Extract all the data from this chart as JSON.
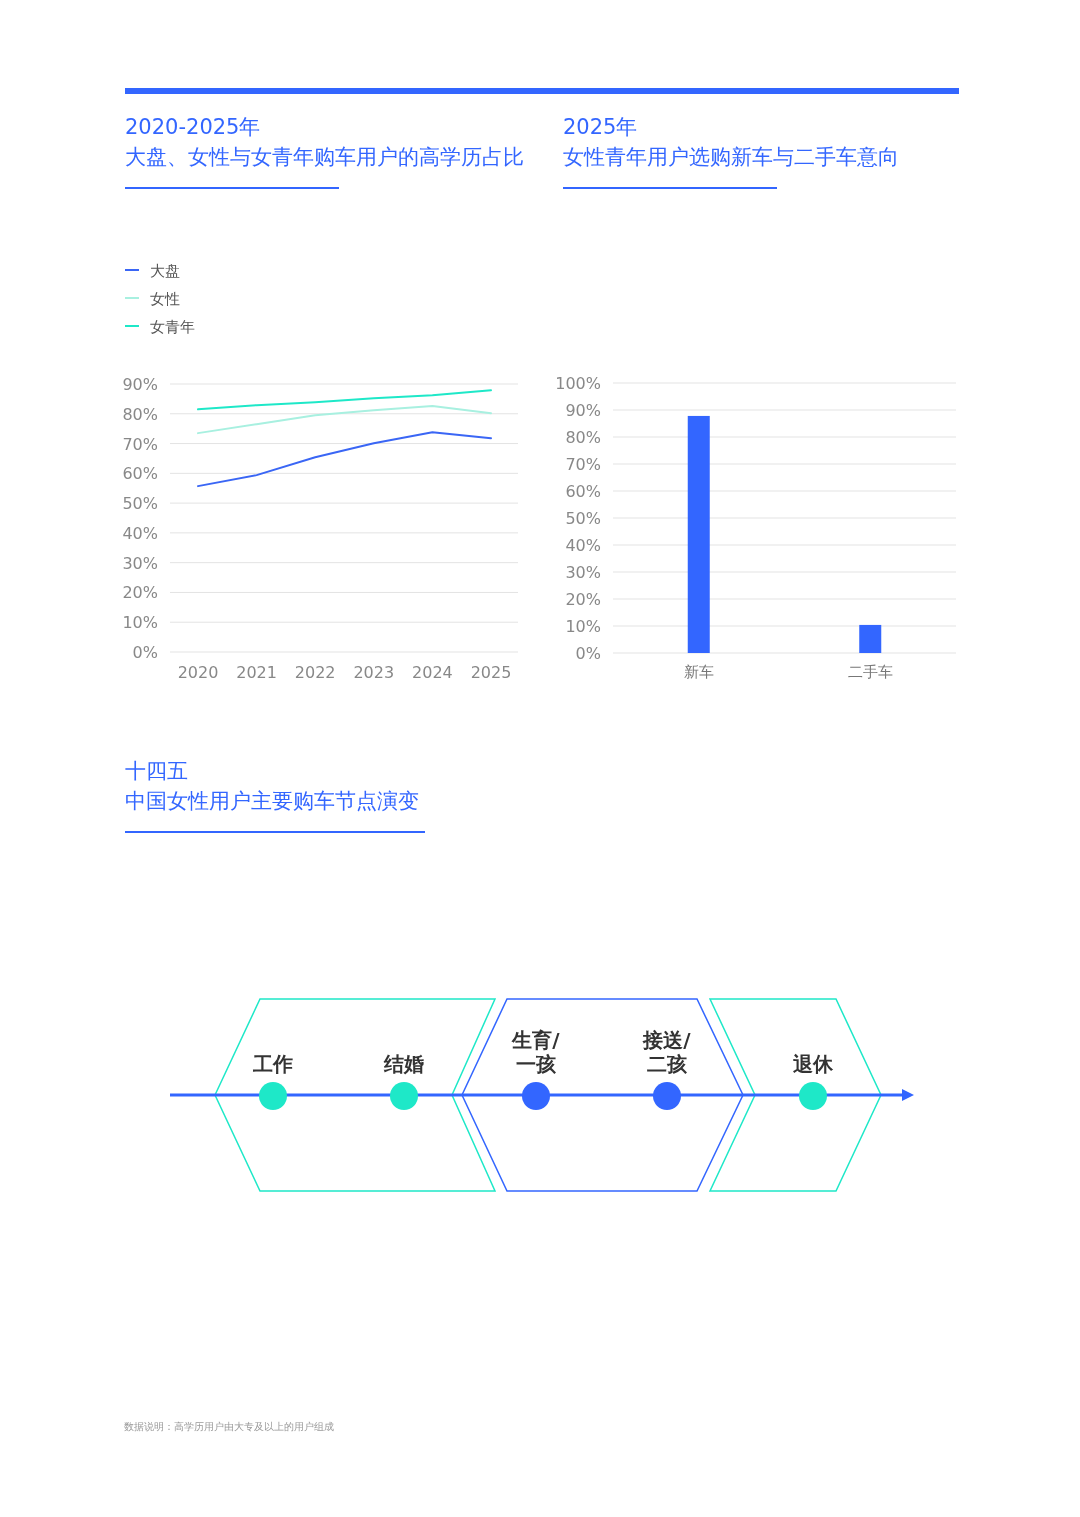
{
  "chart_data": [
    {
      "type": "line",
      "title": "2020-2025年",
      "subtitle": "大盘、女性与女青年购车用户的高学历占比",
      "categories": [
        "2020",
        "2021",
        "2022",
        "2023",
        "2024",
        "2025"
      ],
      "series": [
        {
          "name": "大盘",
          "color": "#3a66f5",
          "values": [
            55.7,
            59.4,
            65.4,
            70.1,
            73.8,
            71.8
          ]
        },
        {
          "name": "女性",
          "color": "#a8f0e0",
          "values": [
            73.5,
            76.5,
            79.5,
            81.2,
            82.6,
            80.2
          ]
        },
        {
          "name": "女青年",
          "color": "#1ee8c8",
          "values": [
            81.5,
            82.9,
            83.9,
            85.2,
            86.2,
            87.9
          ]
        }
      ],
      "ylim": [
        0,
        90
      ],
      "yticks": [
        {
          "value": 0,
          "label": "0%"
        },
        {
          "value": 10,
          "label": "10%"
        },
        {
          "value": 20,
          "label": "20%"
        },
        {
          "value": 30,
          "label": "30%"
        },
        {
          "value": 40,
          "label": "40%"
        },
        {
          "value": 50,
          "label": "50%"
        },
        {
          "value": 60,
          "label": "60%"
        },
        {
          "value": 70,
          "label": "70%"
        },
        {
          "value": 80,
          "label": "80%"
        },
        {
          "value": 90,
          "label": "90%"
        }
      ],
      "grid": "y",
      "legend": "top left",
      "line_style": "solid"
    },
    {
      "type": "bar",
      "title": "2025年",
      "subtitle": "女性青年用户选购新车与二手车意向",
      "categories": [
        "新车",
        "二手车"
      ],
      "values": [
        87.8,
        10.4
      ],
      "color": "#3366ff",
      "ylim": [
        0,
        100
      ],
      "yticks": [
        {
          "value": 0,
          "label": "0%"
        },
        {
          "value": 10,
          "label": "10%"
        },
        {
          "value": 20,
          "label": "20%"
        },
        {
          "value": 30,
          "label": "30%"
        },
        {
          "value": 40,
          "label": "40%"
        },
        {
          "value": 50,
          "label": "50%"
        },
        {
          "value": 60,
          "label": "60%"
        },
        {
          "value": 70,
          "label": "70%"
        },
        {
          "value": 80,
          "label": "80%"
        },
        {
          "value": 90,
          "label": "90%"
        },
        {
          "value": 100,
          "label": "100%"
        }
      ],
      "grid": "y"
    },
    {
      "type": "other",
      "title": "十四五",
      "subtitle": "中国女性用户主要购车节点演变",
      "categories": [
        "工作",
        "结婚",
        "生育/\n一孩",
        "接送/\n二孩",
        "退休"
      ],
      "colors": [
        "#1ee8c8",
        "#1ee8c8",
        "#3366ff",
        "#3366ff",
        "#1ee8c8"
      ],
      "annotations": [
        "数据说明：高学历用户由大专及以上的用户组成"
      ]
    }
  ]
}
